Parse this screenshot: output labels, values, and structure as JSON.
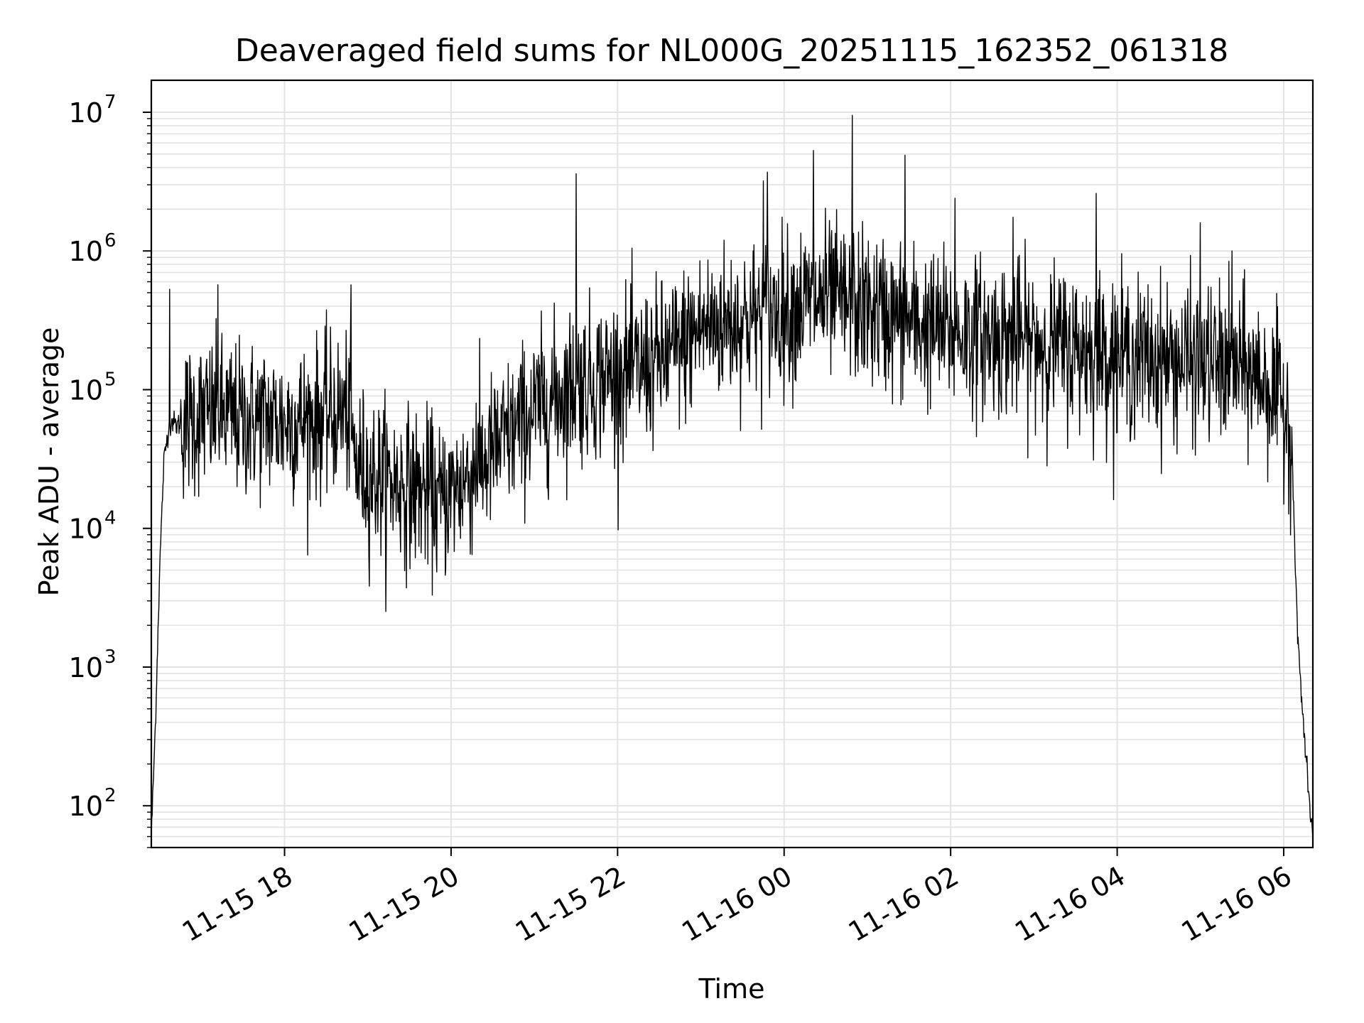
{
  "chart_data": {
    "type": "line",
    "title": "Deaveraged field sums for NL000G_20251115_162352_061318",
    "xlabel": "Time",
    "ylabel": "Peak ADU - average",
    "yscale": "log",
    "ylim": [
      50,
      17000000
    ],
    "xlim_hours": [
      16.4,
      30.35
    ],
    "grid": true,
    "line_color": "#000000",
    "grid_color": "#e3e3e3",
    "x_ticks": [
      {
        "hours": 18,
        "label": "11-15 18"
      },
      {
        "hours": 20,
        "label": "11-15 20"
      },
      {
        "hours": 22,
        "label": "11-15 22"
      },
      {
        "hours": 24,
        "label": "11-16 00"
      },
      {
        "hours": 26,
        "label": "11-16 02"
      },
      {
        "hours": 28,
        "label": "11-16 04"
      },
      {
        "hours": 30,
        "label": "11-16 06"
      }
    ],
    "y_ticks": [
      {
        "value": 100,
        "base": "10",
        "exp": "2"
      },
      {
        "value": 1000,
        "base": "10",
        "exp": "3"
      },
      {
        "value": 10000,
        "base": "10",
        "exp": "4"
      },
      {
        "value": 100000,
        "base": "10",
        "exp": "5"
      },
      {
        "value": 1000000,
        "base": "10",
        "exp": "6"
      },
      {
        "value": 10000000,
        "base": "10",
        "exp": "7"
      }
    ],
    "series": [
      {
        "name": "Peak ADU - average",
        "hours": [
          16.4,
          16.45,
          16.5,
          16.55,
          16.6,
          16.65,
          16.7,
          16.8,
          17.0,
          17.25,
          17.5,
          17.75,
          18.0,
          18.25,
          18.5,
          18.75,
          18.85,
          19.0,
          19.25,
          19.5,
          19.75,
          19.85,
          20.0,
          20.25,
          20.5,
          20.75,
          21.0,
          21.25,
          21.5,
          21.75,
          22.0,
          22.25,
          22.5,
          22.75,
          23.0,
          23.25,
          23.5,
          23.75,
          24.0,
          24.25,
          24.5,
          24.75,
          25.0,
          25.25,
          25.5,
          25.75,
          26.0,
          26.25,
          26.5,
          26.75,
          27.0,
          27.25,
          27.5,
          27.75,
          28.0,
          28.25,
          28.5,
          28.75,
          29.0,
          29.25,
          29.5,
          29.75,
          29.95,
          30.05,
          30.1,
          30.15,
          30.2,
          30.25,
          30.3,
          30.35
        ],
        "values": [
          60,
          400,
          5000,
          30000,
          50000,
          60000,
          55000,
          60000,
          65000,
          65000,
          60000,
          62000,
          58000,
          60000,
          65000,
          70000,
          30000,
          25000,
          22000,
          20000,
          18000,
          15000,
          18000,
          25000,
          35000,
          50000,
          70000,
          90000,
          110000,
          120000,
          130000,
          140000,
          160000,
          200000,
          280000,
          300000,
          320000,
          340000,
          380000,
          420000,
          450000,
          420000,
          380000,
          340000,
          300000,
          280000,
          260000,
          250000,
          240000,
          230000,
          220000,
          210000,
          200000,
          190000,
          180000,
          170000,
          165000,
          160000,
          155000,
          150000,
          140000,
          120000,
          80000,
          70000,
          40000,
          3000,
          800,
          300,
          120,
          60
        ]
      }
    ],
    "noise_sigma_dex": 0.28,
    "spikes": [
      {
        "hours": 16.62,
        "value": 530000
      },
      {
        "hours": 17.2,
        "value": 570000
      },
      {
        "hours": 18.8,
        "value": 570000
      },
      {
        "hours": 20.3,
        "value": 80000
      },
      {
        "hours": 21.5,
        "value": 3600000
      },
      {
        "hours": 23.75,
        "value": 3200000
      },
      {
        "hours": 23.8,
        "value": 3700000
      },
      {
        "hours": 24.35,
        "value": 5300000
      },
      {
        "hours": 24.82,
        "value": 9500000
      },
      {
        "hours": 25.45,
        "value": 4900000
      },
      {
        "hours": 26.05,
        "value": 2400000
      },
      {
        "hours": 26.75,
        "value": 1750000
      },
      {
        "hours": 27.75,
        "value": 2600000
      },
      {
        "hours": 29.0,
        "value": 1600000
      },
      {
        "hours": 29.38,
        "value": 1000000
      }
    ]
  }
}
